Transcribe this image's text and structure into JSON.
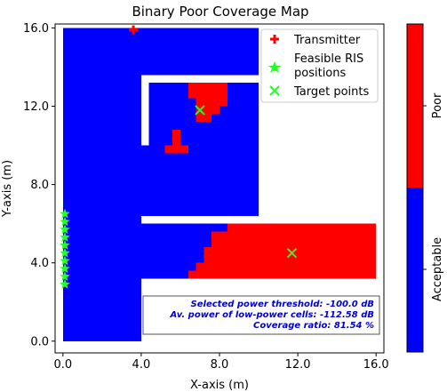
{
  "chart_data": {
    "type": "heatmap",
    "title": "Binary Poor Coverage Map",
    "xlabel": "X-axis (m)",
    "ylabel": "Y-axis (m)",
    "xlim": [
      -0.4,
      16.4
    ],
    "ylim": [
      -0.6,
      16.2
    ],
    "xticks": [
      0.0,
      4.0,
      8.0,
      12.0,
      16.0
    ],
    "xtick_labels": [
      "0.0",
      "4.0",
      "8.0",
      "12.0",
      "16.0"
    ],
    "yticks": [
      0.0,
      4.0,
      8.0,
      12.0,
      16.0
    ],
    "ytick_labels": [
      "0.0",
      "4.0",
      "8.0",
      "12.0",
      "16.0"
    ],
    "colors": {
      "acceptable": "#0000ff",
      "poor": "#ff0000",
      "wall": "#ffffff"
    },
    "coverage_regions": {
      "acceptable": [
        [
          0,
          16,
          0,
          3.2
        ],
        [
          0,
          4.0,
          3.2,
          16
        ],
        [
          4.0,
          16,
          3.2,
          6.0
        ],
        [
          4.0,
          10,
          6.4,
          16
        ],
        [
          4.4,
          10,
          6.4,
          13.6
        ]
      ],
      "wall_gaps": [
        [
          10,
          16.4,
          6.0,
          16.2
        ],
        [
          4.0,
          10,
          6.0,
          6.4
        ],
        [
          4.0,
          4.4,
          10.0,
          13.6
        ],
        [
          4.0,
          10,
          13.2,
          13.6
        ],
        [
          4.0,
          16.4,
          -0.6,
          3.2
        ],
        [
          -0.4,
          16.4,
          -0.6,
          0
        ]
      ],
      "poor_cells": [
        [
          6.4,
          8.4,
          12.4,
          13.2
        ],
        [
          6.8,
          8.4,
          12.0,
          12.4
        ],
        [
          6.8,
          8.0,
          11.6,
          12.0
        ],
        [
          7.2,
          7.6,
          11.2,
          11.6
        ],
        [
          6.8,
          7.2,
          11.2,
          11.6
        ],
        [
          5.6,
          6.0,
          10.4,
          10.8
        ],
        [
          5.6,
          6.0,
          10.0,
          10.4
        ],
        [
          5.2,
          6.4,
          9.6,
          10.0
        ],
        [
          8.4,
          16.0,
          5.6,
          6.0
        ],
        [
          7.6,
          16.0,
          5.2,
          5.6
        ],
        [
          7.6,
          16.0,
          4.8,
          5.2
        ],
        [
          7.2,
          16.0,
          4.4,
          4.8
        ],
        [
          7.2,
          16.0,
          4.0,
          4.4
        ],
        [
          6.8,
          16.0,
          3.6,
          4.0
        ],
        [
          6.4,
          16.0,
          3.2,
          3.6
        ]
      ]
    },
    "series": [
      {
        "name": "Transmitter",
        "marker": "plus",
        "color": "#ff0000",
        "points": [
          [
            3.6,
            15.9
          ]
        ]
      },
      {
        "name": "Feasible RIS\npositions",
        "marker": "star",
        "color": "#22ff22",
        "points": [
          [
            0.1,
            6.5
          ],
          [
            0.1,
            6.1
          ],
          [
            0.1,
            5.7
          ],
          [
            0.1,
            5.3
          ],
          [
            0.1,
            4.9
          ],
          [
            0.1,
            4.5
          ],
          [
            0.1,
            4.1
          ],
          [
            0.1,
            3.7
          ],
          [
            0.1,
            3.3
          ],
          [
            0.1,
            2.9
          ]
        ]
      },
      {
        "name": "Target points",
        "marker": "x",
        "color": "#22ff22",
        "points": [
          [
            7.0,
            11.8
          ],
          [
            11.7,
            4.5
          ]
        ]
      }
    ],
    "legend": {
      "placement": "upper right",
      "entries": [
        "Transmitter",
        "Feasible RIS",
        "positions",
        "Target points"
      ]
    },
    "annotation": {
      "lines": [
        "Selected power threshold: -100.0 dB",
        "Av. power of low-power cells: -112.58 dB",
        "Coverage ratio: 81.54 %"
      ],
      "color": "#0000cc"
    },
    "colorbar": {
      "labels": [
        "Acceptable",
        "Poor"
      ],
      "colors": [
        "#0000ff",
        "#ff0000"
      ]
    }
  }
}
